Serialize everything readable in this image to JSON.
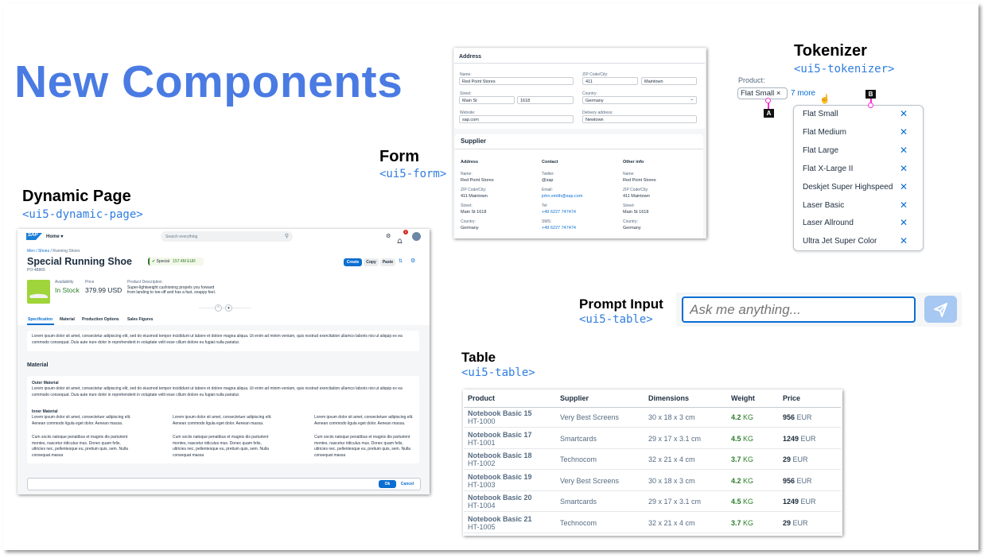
{
  "slide_title": "New Components",
  "sections": {
    "dynamic_page": {
      "label": "Dynamic Page",
      "tag": "<ui5-dynamic-page>"
    },
    "form": {
      "label": "Form",
      "tag": "<ui5-form>"
    },
    "tokenizer": {
      "label": "Tokenizer",
      "tag": "<ui5-tokenizer>"
    },
    "prompt_input": {
      "label": "Prompt Input",
      "tag": "<ui5-table>"
    },
    "table": {
      "label": "Table",
      "tag": "<ui5-table>"
    }
  },
  "form": {
    "address_title": "Address",
    "fields": {
      "name_label": "Name:",
      "name_value": "Red Point Stores",
      "zip_label": "ZIP Code/City:",
      "zip_value": "411",
      "city_value": "Maintown",
      "street_label": "Street:",
      "street_value": "Main St",
      "number_value": "1618",
      "country_label": "Country:",
      "country_value": "Germany",
      "website_label": "Website:",
      "website_value": "sap.com",
      "delivery_label": "Delivery address:",
      "delivery_value": "Newtown"
    },
    "supplier_title": "Supplier",
    "columns": [
      {
        "heading": "Address",
        "items": [
          {
            "label": "Name:",
            "value": "Red Point Stores"
          },
          {
            "label": "ZIP Code/City:",
            "value": "411 Maintown"
          },
          {
            "label": "Street:",
            "value": "Main St 1618"
          },
          {
            "label": "Country:",
            "value": "Germany"
          }
        ]
      },
      {
        "heading": "Contact",
        "items": [
          {
            "label": "Twitter:",
            "value": "@sap"
          },
          {
            "label": "Email:",
            "value": "john.smith@sap.com",
            "link": true
          },
          {
            "label": "Tel:",
            "value": "+49 6227 747474",
            "link": true
          },
          {
            "label": "SMS:",
            "value": "+49 6227 747474",
            "link": true
          }
        ]
      },
      {
        "heading": "Other info",
        "items": [
          {
            "label": "Name:",
            "value": "Red Point Stores"
          },
          {
            "label": "ZIP Code/City:",
            "value": "411 Maintown"
          },
          {
            "label": "Street:",
            "value": "Main St 1618"
          },
          {
            "label": "Country:",
            "value": "Germany"
          }
        ]
      }
    ]
  },
  "tokenizer": {
    "label": "Product:",
    "token": "Flat Small",
    "more": "7 more",
    "marker_a": "A",
    "marker_b": "B",
    "items": [
      "Flat Small",
      "Flat Medium",
      "Flat Large",
      "Flat X-Large II",
      "Deskjet Super Highspeed",
      "Laser Basic",
      "Laser Allround",
      "Ultra Jet Super Color"
    ]
  },
  "prompt_input": {
    "placeholder": "Ask me anything...",
    "send_icon": "paper-plane-icon"
  },
  "dynamic_page": {
    "shell": {
      "logo": "SAP",
      "home": "Home",
      "search_placeholder": "Search everything",
      "notification_count": "2"
    },
    "breadcrumb": [
      "Men",
      "Shoes",
      "Running Shoes"
    ],
    "title": "Special Running Shoe",
    "badge": {
      "label": "Special",
      "value": "157.4M EUR"
    },
    "subtitle": "PO-48865",
    "actions": {
      "create": "Create",
      "copy": "Copy",
      "paste": "Paste"
    },
    "availability_label": "Availability",
    "availability_value": "In Stock",
    "price_label": "Price",
    "price_value": "379.99 USD",
    "description_label": "Product Description",
    "description_value": "Super-lightweight cushioning propels you forward from landing to toe-off and has a fast, snappy feel.",
    "tabs": [
      "Specification",
      "Material",
      "Production Options",
      "Sales Figures"
    ],
    "lorem_long": "Lorem ipsum dolor sit amet, consectetur adipiscing elit, sed do eiusmod tempor incididunt ut labore et dolore magna aliqua. Ut enim ad minim veniam, quis nostrud exercitation ullamco laboris nisi ut aliquip ex ea commodo consequat. Duis aute irure dolor in reprehenderit in voluptate velit esse cillum dolore eu fugiat nulla pariatur.",
    "material_heading": "Material",
    "outer_heading": "Outer Material",
    "inner_heading": "Inner Material",
    "lorem_short1": "Lorem ipsum dolor sit amet, consectetuer adipiscing elit. Aenean commodo ligula eget dolor. Aenean massa.",
    "lorem_short2": "Cum sociis natoque penatibus et magnis dis parturient montes, nascetur ridiculus mus. Donec quam felis, ultricies nec, pellentesque eu, pretium quis, sem. Nulla consequat massa",
    "footer": {
      "ok": "Ok",
      "cancel": "Cancel"
    }
  },
  "table": {
    "columns": [
      "Product",
      "Supplier",
      "Dimensions",
      "Weight",
      "Price"
    ],
    "rows": [
      {
        "name": "Notebook Basic 15",
        "id": "HT-1000",
        "supplier": "Very Best Screens",
        "dimensions": "30 x 18 x 3 cm",
        "weight": "4.2",
        "weight_unit": "KG",
        "price": "956",
        "currency": "EUR"
      },
      {
        "name": "Notebook Basic 17",
        "id": "HT-1001",
        "supplier": "Smartcards",
        "dimensions": "29 x 17 x 3.1 cm",
        "weight": "4.5",
        "weight_unit": "KG",
        "price": "1249",
        "currency": "EUR"
      },
      {
        "name": "Notebook Basic 18",
        "id": "HT-1002",
        "supplier": "Technocom",
        "dimensions": "32 x 21 x 4 cm",
        "weight": "3.7",
        "weight_unit": "KG",
        "price": "29",
        "currency": "EUR"
      },
      {
        "name": "Notebook Basic 19",
        "id": "HT-1003",
        "supplier": "Very Best Screens",
        "dimensions": "30 x 18 x 3 cm",
        "weight": "4.2",
        "weight_unit": "KG",
        "price": "956",
        "currency": "EUR"
      },
      {
        "name": "Notebook Basic 20",
        "id": "HT-1004",
        "supplier": "Smartcards",
        "dimensions": "29 x 17 x 3.1 cm",
        "weight": "4.5",
        "weight_unit": "KG",
        "price": "1249",
        "currency": "EUR"
      },
      {
        "name": "Notebook Basic 21",
        "id": "HT-1005",
        "supplier": "Technocom",
        "dimensions": "32 x 21 x 4 cm",
        "weight": "3.7",
        "weight_unit": "KG",
        "price": "29",
        "currency": "EUR"
      }
    ]
  },
  "colors": {
    "title": "#4a7be3",
    "tag": "#2f7de1",
    "accent": "#0a6ed1",
    "positive": "#2b7d2b",
    "marker": "#ff2ad4"
  }
}
